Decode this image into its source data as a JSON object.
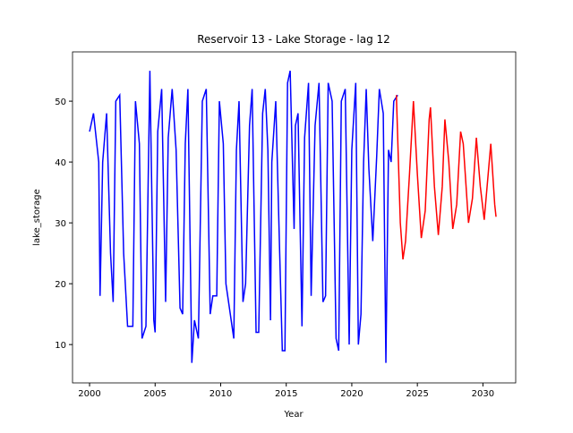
{
  "chart_data": {
    "type": "line",
    "title": "Reservoir 13 - Lake Storage - lag 12",
    "xlabel": "Year",
    "ylabel": "lake_storage",
    "xlim": [
      1998.7,
      2032.5
    ],
    "ylim": [
      3.7,
      58.1
    ],
    "xticks": [
      2000,
      2005,
      2010,
      2015,
      2020,
      2025,
      2030
    ],
    "yticks": [
      10,
      20,
      30,
      40,
      50
    ],
    "series": [
      {
        "color": "#0000ff",
        "x": [
          2000.0,
          2000.3,
          2000.7,
          2000.8,
          2001.0,
          2001.3,
          2001.6,
          2001.8,
          2002.0,
          2002.3,
          2002.6,
          2002.9,
          2003.3,
          2003.5,
          2003.8,
          2004.0,
          2004.3,
          2004.6,
          2004.9,
          2005.0,
          2005.2,
          2005.5,
          2005.8,
          2006.0,
          2006.3,
          2006.6,
          2006.9,
          2007.1,
          2007.3,
          2007.5,
          2007.8,
          2008.0,
          2008.3,
          2008.6,
          2008.9,
          2009.2,
          2009.4,
          2009.7,
          2009.9,
          2010.2,
          2010.4,
          2010.6,
          2011.0,
          2011.2,
          2011.4,
          2011.7,
          2011.9,
          2012.2,
          2012.4,
          2012.7,
          2012.9,
          2013.2,
          2013.4,
          2013.6,
          2013.8,
          2013.9,
          2014.2,
          2014.5,
          2014.7,
          2014.9,
          2015.1,
          2015.3,
          2015.6,
          2015.7,
          2015.9,
          2016.2,
          2016.4,
          2016.7,
          2016.9,
          2017.2,
          2017.5,
          2017.8,
          2018.0,
          2018.2,
          2018.5,
          2018.8,
          2019.0,
          2019.2,
          2019.5,
          2019.8,
          2020.0,
          2020.3,
          2020.5,
          2020.7,
          2020.9,
          2021.1,
          2021.3,
          2021.6,
          2021.9,
          2022.1,
          2022.4,
          2022.6,
          2022.8,
          2023.0,
          2023.2,
          2023.5
        ],
        "values": [
          45,
          48,
          40,
          18,
          40,
          48,
          25,
          17,
          50,
          51,
          25,
          13,
          13,
          50,
          43,
          11,
          13,
          55,
          14,
          12,
          45,
          52,
          17,
          44,
          52,
          42,
          16,
          15,
          43,
          52,
          7,
          14,
          11,
          50,
          52,
          15,
          18,
          18,
          50,
          43,
          20,
          17,
          11,
          42,
          50,
          17,
          20,
          46,
          52,
          12,
          12,
          48,
          52,
          42,
          14,
          40,
          50,
          25,
          9,
          9,
          53,
          55,
          29,
          46,
          48,
          13,
          44,
          53,
          18,
          46,
          53,
          17,
          18,
          53,
          50,
          11,
          9,
          50,
          52,
          10,
          42,
          53,
          10,
          15,
          40,
          52,
          39,
          27,
          41,
          52,
          48,
          7,
          42,
          40,
          50,
          51
        ]
      },
      {
        "color": "#ff0000",
        "x": [
          2023.4,
          2023.7,
          2023.9,
          2024.1,
          2024.4,
          2024.7,
          2025.0,
          2025.3,
          2025.6,
          2025.9,
          2026.0,
          2026.3,
          2026.6,
          2026.9,
          2027.1,
          2027.4,
          2027.7,
          2028.0,
          2028.3,
          2028.5,
          2028.9,
          2029.2,
          2029.5,
          2029.8,
          2030.1,
          2030.4,
          2030.6,
          2030.9,
          2031.0
        ],
        "values": [
          51,
          30,
          24,
          27,
          38,
          50,
          38,
          27.5,
          32,
          47,
          49,
          36,
          28,
          36,
          47,
          40,
          29,
          33,
          45,
          43,
          30,
          34,
          44,
          36,
          30.5,
          38,
          43,
          33,
          31
        ]
      }
    ]
  }
}
